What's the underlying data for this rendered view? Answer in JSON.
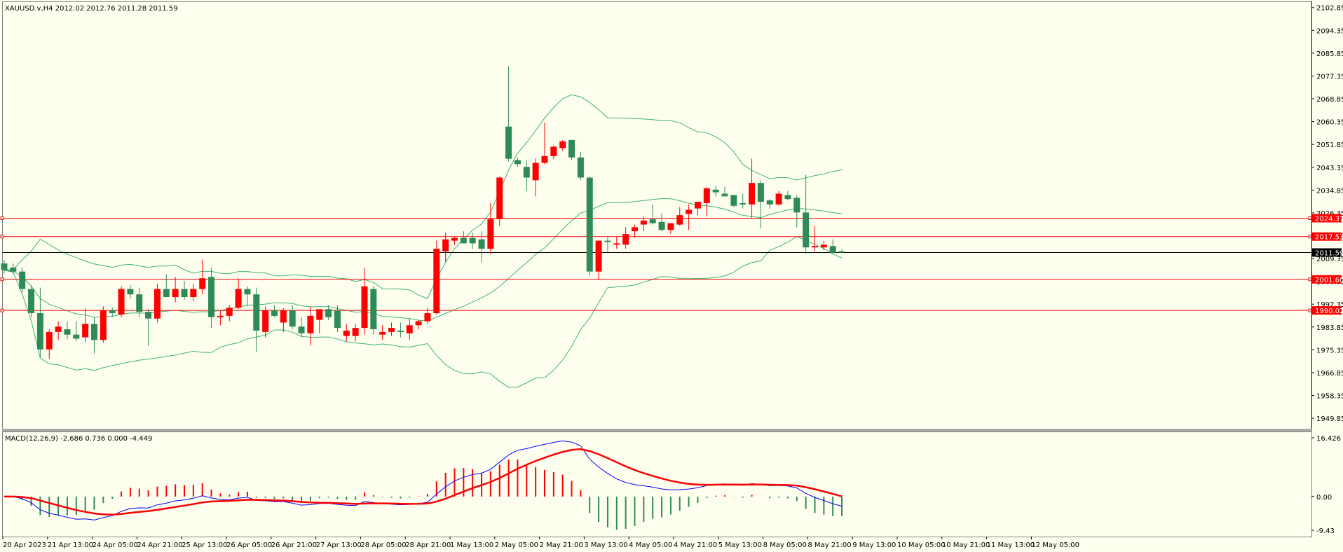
{
  "main_panel": {
    "label": "XAUUSD.v,H4  2012.02 2012.76 2011.28 2011.59",
    "price_ticks": [
      "2102.85",
      "2094.35",
      "2085.85",
      "2077.35",
      "2068.85",
      "2060.35",
      "2051.85",
      "2043.35",
      "2034.85",
      "2026.35",
      "2017.85",
      "2009.35",
      "2000.85",
      "1992.35",
      "1983.85",
      "1975.35",
      "1966.85",
      "1958.35",
      "1949.85"
    ],
    "level_tags": [
      {
        "text": "2024.37",
        "bg": "#FF0000",
        "fg": "#FFFFFF"
      },
      {
        "text": "2017.53",
        "bg": "#FF0000",
        "fg": "#FFFFFF"
      },
      {
        "text": "2011.59",
        "bg": "#000000",
        "fg": "#FFFFFF"
      },
      {
        "text": "2001.60",
        "bg": "#FF0000",
        "fg": "#FFFFFF"
      },
      {
        "text": "1990.02",
        "bg": "#FF0000",
        "fg": "#FFFFFF"
      }
    ]
  },
  "macd_panel": {
    "label": "MACD(12,26,9) -2.686 0.736 0.000 -4.449",
    "ticks": [
      "16.426",
      "0.00",
      "-9.43"
    ]
  },
  "time_axis": [
    "20 Apr 2023",
    "21 Apr 13:00",
    "24 Apr 05:00",
    "24 Apr 21:00",
    "25 Apr 13:00",
    "26 Apr 05:00",
    "26 Apr 21:00",
    "27 Apr 13:00",
    "28 Apr 05:00",
    "28 Apr 21:00",
    "1 May 13:00",
    "2 May 05:00",
    "2 May 21:00",
    "3 May 13:00",
    "4 May 05:00",
    "4 May 21:00",
    "5 May 13:00",
    "8 May 05:00",
    "8 May 21:00",
    "9 May 13:00",
    "10 May 05:00",
    "10 May 21:00",
    "11 May 13:00",
    "12 May 05:00"
  ],
  "colors": {
    "background": "#FFFFF0",
    "bull_candle": "#2E8B57",
    "bear_candle": "#FF0000",
    "bands": "#3CB371",
    "level_line": "#FF0000",
    "price_line": "#000000",
    "macd_line": "#0000FF",
    "signal_line": "#FF0000"
  },
  "chart_data": {
    "type": "candlestick",
    "symbol": "XAUUSD.v",
    "timeframe": "H4",
    "ylim": [
      1947.0,
      2105.0
    ],
    "ohlc": [
      [
        2007.5,
        2008.8,
        2003.8,
        2005.0
      ],
      [
        2006.0,
        2007.5,
        2003.5,
        2004.5
      ],
      [
        2004.5,
        2006.0,
        1996.8,
        1998.0
      ],
      [
        1998.0,
        1999.3,
        1987.5,
        1989.0
      ],
      [
        1989.0,
        1998.5,
        1972.5,
        1975.5
      ],
      [
        1975.5,
        1983.0,
        1972.0,
        1982.0
      ],
      [
        1982.0,
        1986.0,
        1979.0,
        1984.0
      ],
      [
        1983.0,
        1986.0,
        1979.2,
        1981.0
      ],
      [
        1981.0,
        1986.0,
        1978.5,
        1979.5
      ],
      [
        1980.0,
        1990.8,
        1978.2,
        1985.0
      ],
      [
        1985.0,
        1987.5,
        1974.0,
        1979.0
      ],
      [
        1979.0,
        1991.5,
        1978.0,
        1990.0
      ],
      [
        1990.0,
        1991.2,
        1987.5,
        1989.0
      ],
      [
        1988.5,
        1999.0,
        1987.5,
        1998.0
      ],
      [
        1998.0,
        1999.5,
        1994.5,
        1996.0
      ],
      [
        1996.0,
        1998.5,
        1987.5,
        1989.5
      ],
      [
        1989.5,
        1990.5,
        1976.8,
        1987.0
      ],
      [
        1987.0,
        2000.0,
        1985.5,
        1998.0
      ],
      [
        1998.0,
        2003.5,
        1995.5,
        1995.0
      ],
      [
        1995.0,
        2002.5,
        1993.0,
        1998.0
      ],
      [
        1998.0,
        2001.0,
        1994.0,
        1995.0
      ],
      [
        1995.0,
        2000.0,
        1993.5,
        1998.0
      ],
      [
        1998.0,
        2009.0,
        1996.0,
        2002.0
      ],
      [
        2002.5,
        2006.0,
        1983.5,
        1987.5
      ],
      [
        1987.5,
        1990.0,
        1984.5,
        1988.0
      ],
      [
        1988.0,
        1992.0,
        1986.0,
        1991.0
      ],
      [
        1991.0,
        2002.0,
        1990.5,
        1998.0
      ],
      [
        1998.0,
        1999.0,
        1991.5,
        1996.0
      ],
      [
        1996.0,
        1998.5,
        1974.5,
        1982.5
      ],
      [
        1982.0,
        1991.5,
        1980.0,
        1990.0
      ],
      [
        1990.0,
        1992.0,
        1987.5,
        1988.0
      ],
      [
        1985.5,
        1990.8,
        1982.0,
        1990.0
      ],
      [
        1990.0,
        1992.0,
        1983.0,
        1984.0
      ],
      [
        1984.0,
        1987.5,
        1980.0,
        1981.5
      ],
      [
        1981.5,
        1991.5,
        1977.0,
        1988.0
      ],
      [
        1986.5,
        1990.5,
        1981.5,
        1990.5
      ],
      [
        1990.5,
        1992.0,
        1986.5,
        1987.5
      ],
      [
        1990.0,
        1992.0,
        1982.0,
        1983.5
      ],
      [
        1980.5,
        1985.0,
        1978.5,
        1982.5
      ],
      [
        1980.5,
        1985.0,
        1978.5,
        1983.5
      ],
      [
        1983.5,
        2006.0,
        1981.0,
        1999.0
      ],
      [
        1998.0,
        1999.0,
        1981.0,
        1983.0
      ],
      [
        1981.0,
        1984.5,
        1979.0,
        1982.0
      ],
      [
        1982.0,
        1985.5,
        1980.5,
        1983.5
      ],
      [
        1982.5,
        1985.5,
        1980.0,
        1982.0
      ],
      [
        1981.5,
        1987.0,
        1979.0,
        1984.5
      ],
      [
        1984.5,
        1986.5,
        1983.0,
        1986.0
      ],
      [
        1986.0,
        1991.0,
        1985.0,
        1989.0
      ],
      [
        1989.0,
        2016.0,
        1988.5,
        2013.0
      ],
      [
        2012.0,
        2019.0,
        2008.0,
        2016.5
      ],
      [
        2016.0,
        2017.5,
        2014.5,
        2017.0
      ],
      [
        2017.0,
        2019.5,
        2015.5,
        2015.0
      ],
      [
        2017.0,
        2019.0,
        2013.0,
        2015.0
      ],
      [
        2016.5,
        2019.5,
        2008.0,
        2013.0
      ],
      [
        2013.0,
        2030.0,
        2011.0,
        2024.0
      ],
      [
        2024.0,
        2040.0,
        2021.5,
        2039.5
      ],
      [
        2058.5,
        2081.0,
        2045.5,
        2046.5
      ],
      [
        2046.0,
        2047.0,
        2043.5,
        2044.5
      ],
      [
        2043.5,
        2046.0,
        2034.5,
        2039.5
      ],
      [
        2038.5,
        2046.5,
        2032.5,
        2045.0
      ],
      [
        2045.0,
        2060.0,
        2044.5,
        2047.5
      ],
      [
        2047.5,
        2051.5,
        2046.5,
        2051.0
      ],
      [
        2050.5,
        2053.5,
        2049.5,
        2053.0
      ],
      [
        2053.5,
        2053.5,
        2046.0,
        2047.0
      ],
      [
        2047.0,
        2049.0,
        2038.5,
        2039.5
      ],
      [
        2039.5,
        2040.0,
        2003.0,
        2004.5
      ],
      [
        2004.5,
        2016.0,
        2001.5,
        2016.0
      ],
      [
        2016.0,
        2017.5,
        2012.0,
        2015.5
      ],
      [
        2014.5,
        2017.5,
        2013.0,
        2015.0
      ],
      [
        2014.5,
        2021.0,
        2013.0,
        2018.5
      ],
      [
        2019.5,
        2022.0,
        2017.0,
        2021.0
      ],
      [
        2022.0,
        2025.0,
        2019.5,
        2023.5
      ],
      [
        2024.0,
        2029.5,
        2022.0,
        2022.5
      ],
      [
        2023.0,
        2026.0,
        2019.5,
        2020.0
      ],
      [
        2020.0,
        2022.5,
        2018.5,
        2022.5
      ],
      [
        2022.0,
        2028.5,
        2021.5,
        2025.5
      ],
      [
        2026.0,
        2029.5,
        2020.0,
        2027.5
      ],
      [
        2028.0,
        2030.5,
        2025.5,
        2030.5
      ],
      [
        2030.0,
        2036.0,
        2025.0,
        2035.5
      ],
      [
        2035.0,
        2036.5,
        2032.5,
        2034.0
      ],
      [
        2033.5,
        2036.0,
        2032.5,
        2032.5
      ],
      [
        2033.0,
        2032.5,
        2028.5,
        2029.0
      ],
      [
        2030.0,
        2033.5,
        2028.0,
        2029.5
      ],
      [
        2029.5,
        2046.5,
        2024.5,
        2037.5
      ],
      [
        2037.5,
        2038.5,
        2020.5,
        2030.5
      ],
      [
        2031.0,
        2031.5,
        2028.0,
        2029.5
      ],
      [
        2029.5,
        2034.5,
        2029.0,
        2033.5
      ],
      [
        2033.0,
        2034.5,
        2031.0,
        2031.5
      ],
      [
        2032.0,
        2033.0,
        2021.0,
        2026.5
      ],
      [
        2026.5,
        2040.5,
        2011.0,
        2013.5
      ],
      [
        2013.5,
        2021.5,
        2012.0,
        2014.0
      ],
      [
        2013.5,
        2016.0,
        2012.5,
        2014.5
      ],
      [
        2014.0,
        2016.5,
        2011.0,
        2011.5
      ],
      [
        2012.0,
        2012.8,
        2011.3,
        2011.6
      ]
    ],
    "horizontal_levels": [
      2024.37,
      2017.53,
      2001.6,
      1990.02
    ],
    "current_price": 2011.59,
    "macd": {
      "ylim": [
        -11.0,
        18.0
      ],
      "ticks": [
        16.426,
        0.0,
        -9.43
      ],
      "main_line_color": "#0000FF",
      "signal_line_color": "#FF0000"
    }
  }
}
